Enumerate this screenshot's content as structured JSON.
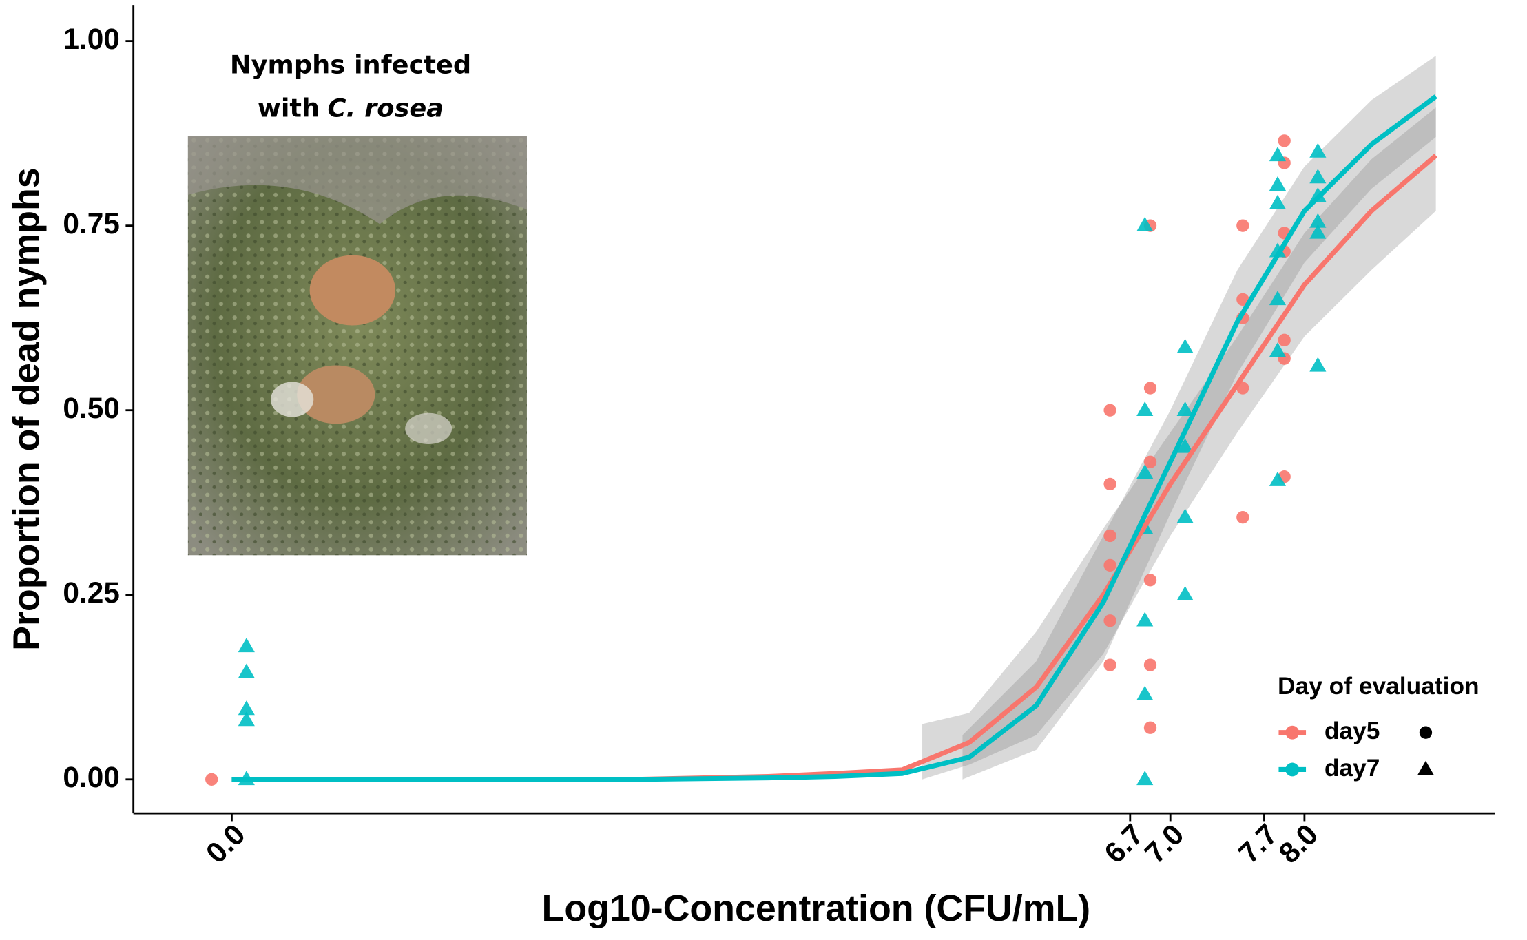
{
  "chart_data": {
    "type": "scatter",
    "x_label": "Log10-Concentration (CFU/mL)",
    "y_label": "Proportion of dead nymphs",
    "annotation": [
      "Nymphs infected",
      "with",
      "C. rosea"
    ],
    "legend_title": "Day of evaluation",
    "legend_position": "bottom-right",
    "grid": false,
    "xlim": [
      -0.733,
      9.42
    ],
    "ylim": [
      -0.046,
      1.049
    ],
    "xticks": [
      {
        "value": 0,
        "label": "0.0"
      },
      6.7,
      {
        "value": 7,
        "label": "7.0"
      },
      7.7,
      {
        "value": 8,
        "label": "8.0"
      }
    ],
    "yticks": [
      {
        "value": 0,
        "label": "0.00"
      },
      {
        "value": 0.25,
        "label": "0.25"
      },
      {
        "value": 0.5,
        "label": "0.50"
      },
      {
        "value": 0.75,
        "label": "0.75"
      },
      {
        "value": 1,
        "label": "1.00"
      }
    ],
    "band_color": "#808080",
    "series": [
      {
        "name": "day5",
        "color": "#F8766D",
        "marker": "circle",
        "x": [
          -0.15,
          6.55,
          6.55,
          6.55,
          6.55,
          6.55,
          6.55,
          6.85,
          6.85,
          6.85,
          6.85,
          6.85,
          6.85,
          7.54,
          7.54,
          7.54,
          7.54,
          7.54,
          7.85,
          7.85,
          7.85,
          7.85,
          7.85,
          7.85,
          7.85
        ],
        "values": [
          0,
          0.5,
          0.4,
          0.33,
          0.29,
          0.215,
          0.155,
          0.75,
          0.53,
          0.43,
          0.27,
          0.155,
          0.07,
          0.75,
          0.65,
          0.625,
          0.53,
          0.355,
          0.865,
          0.835,
          0.74,
          0.715,
          0.595,
          0.57,
          0.41
        ],
        "fit": {
          "x": [
            0,
            2,
            3,
            4,
            4.5,
            5,
            5.5,
            6,
            6.5,
            7,
            7.5,
            8,
            8.5,
            8.98
          ],
          "values": [
            0,
            0,
            0,
            0.004,
            0.008,
            0.013,
            0.05,
            0.125,
            0.25,
            0.4,
            0.535,
            0.67,
            0.77,
            0.845
          ],
          "band_x": [
            5.15,
            5.5,
            6,
            6.5,
            7,
            7.5,
            8,
            8.5,
            8.98
          ],
          "band_lower": [
            0,
            0.02,
            0.06,
            0.17,
            0.33,
            0.47,
            0.6,
            0.69,
            0.77
          ],
          "band_upper": [
            0.075,
            0.09,
            0.2,
            0.34,
            0.47,
            0.6,
            0.74,
            0.84,
            0.91
          ]
        }
      },
      {
        "name": "day7",
        "color": "#00BFC4",
        "marker": "triangle",
        "x": [
          0.11,
          0.11,
          0.11,
          0.11,
          0.11,
          6.81,
          6.81,
          6.81,
          6.81,
          6.81,
          6.81,
          6.81,
          7.11,
          7.11,
          7.11,
          7.11,
          7.11,
          7.8,
          7.8,
          7.8,
          7.8,
          7.8,
          7.8,
          7.8,
          8.1,
          8.1,
          8.1,
          8.1,
          8.1,
          8.1
        ],
        "values": [
          0.18,
          0.145,
          0.095,
          0.08,
          0,
          0.75,
          0.5,
          0.415,
          0.34,
          0.215,
          0.115,
          0,
          0.585,
          0.5,
          0.45,
          0.355,
          0.25,
          0.845,
          0.805,
          0.78,
          0.715,
          0.65,
          0.58,
          0.405,
          0.85,
          0.815,
          0.79,
          0.755,
          0.74,
          0.56
        ],
        "fit": {
          "x": [
            0,
            2,
            3,
            4,
            4.5,
            5,
            5.5,
            6,
            6.5,
            7,
            7.5,
            8,
            8.5,
            8.98
          ],
          "values": [
            0,
            0,
            0,
            0.002,
            0.004,
            0.008,
            0.03,
            0.1,
            0.24,
            0.43,
            0.62,
            0.77,
            0.86,
            0.925
          ],
          "band_x": [
            5.45,
            6,
            6.5,
            7,
            7.5,
            8,
            8.5,
            8.98
          ],
          "band_lower": [
            0,
            0.04,
            0.16,
            0.36,
            0.55,
            0.7,
            0.8,
            0.87
          ],
          "band_upper": [
            0.06,
            0.16,
            0.33,
            0.5,
            0.69,
            0.83,
            0.92,
            0.98
          ]
        }
      }
    ]
  }
}
